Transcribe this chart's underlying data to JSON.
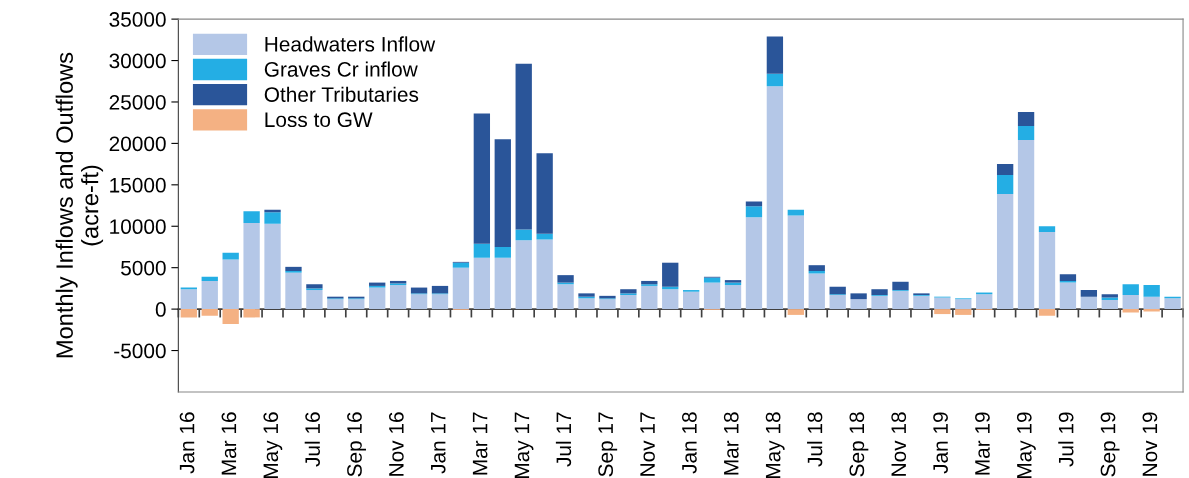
{
  "chart_data": {
    "type": "bar",
    "stacked": true,
    "ylabel": "Monthly Inflows and Outflows\n(acre-ft)",
    "categories": [
      "Jan 16",
      null,
      "Mar 16",
      null,
      "May 16",
      null,
      "Jul 16",
      null,
      "Sep 16",
      null,
      "Nov 16",
      null,
      "Jan 17",
      null,
      "Mar 17",
      null,
      "May 17",
      null,
      "Jul 17",
      null,
      "Sep 17",
      null,
      "Nov 17",
      null,
      "Jan 18",
      null,
      "Mar 18",
      null,
      "May 18",
      null,
      "Jul 18",
      null,
      "Sep 18",
      null,
      "Nov 18",
      null,
      "Jan 19",
      null,
      "Mar 19",
      null,
      "May 19",
      null,
      "Jul 19",
      null,
      "Sep 19",
      null,
      "Nov 19",
      null
    ],
    "series": [
      {
        "name": "Headwaters Inflow",
        "color": "#b4c7e7",
        "values": [
          2400,
          3400,
          6000,
          10400,
          10300,
          4400,
          2300,
          1200,
          1200,
          2600,
          2900,
          1800,
          1800,
          5000,
          6200,
          6200,
          8300,
          8400,
          3000,
          1300,
          1200,
          1700,
          2800,
          2400,
          2100,
          3200,
          2900,
          11100,
          26900,
          11300,
          4300,
          1700,
          1200,
          1600,
          2200,
          1600,
          1400,
          1200,
          1800,
          13900,
          20400,
          9300,
          3200,
          1500,
          1100,
          1700,
          1500,
          1300
        ]
      },
      {
        "name": "Graves Cr inflow",
        "color": "#24aee4",
        "values": [
          200,
          500,
          800,
          1400,
          1400,
          200,
          200,
          100,
          100,
          200,
          200,
          100,
          100,
          600,
          1700,
          1300,
          1300,
          700,
          200,
          200,
          100,
          200,
          200,
          300,
          200,
          600,
          300,
          1300,
          1500,
          700,
          300,
          100,
          0,
          100,
          100,
          100,
          100,
          100,
          200,
          2300,
          1700,
          700,
          200,
          0,
          300,
          1300,
          1400,
          200
        ]
      },
      {
        "name": "Other Tributaries",
        "color": "#2a5599",
        "values": [
          0,
          0,
          0,
          0,
          300,
          500,
          500,
          200,
          200,
          400,
          300,
          700,
          900,
          100,
          15700,
          13000,
          20000,
          9700,
          900,
          400,
          300,
          500,
          400,
          2900,
          0,
          100,
          300,
          600,
          4500,
          0,
          700,
          900,
          700,
          700,
          1000,
          200,
          0,
          0,
          0,
          1300,
          1700,
          0,
          800,
          800,
          400,
          0,
          0,
          0
        ]
      },
      {
        "name": "Loss to GW",
        "color": "#f4b183",
        "values": [
          -1000,
          -800,
          -1800,
          -1000,
          0,
          0,
          0,
          0,
          0,
          0,
          0,
          0,
          0,
          -100,
          0,
          0,
          0,
          0,
          0,
          0,
          0,
          0,
          0,
          0,
          0,
          -100,
          0,
          0,
          0,
          -700,
          0,
          0,
          0,
          0,
          0,
          0,
          -600,
          -700,
          -100,
          0,
          0,
          -800,
          0,
          0,
          0,
          -400,
          -300,
          0
        ]
      }
    ],
    "ylim": [
      -10000,
      35000
    ],
    "yticks": [
      -5000,
      0,
      5000,
      10000,
      15000,
      20000,
      25000,
      30000,
      35000
    ],
    "ref_lines": [
      {
        "axis": "y",
        "value": 0,
        "color": "#404040"
      }
    ],
    "legend": "top left",
    "grid": false
  }
}
